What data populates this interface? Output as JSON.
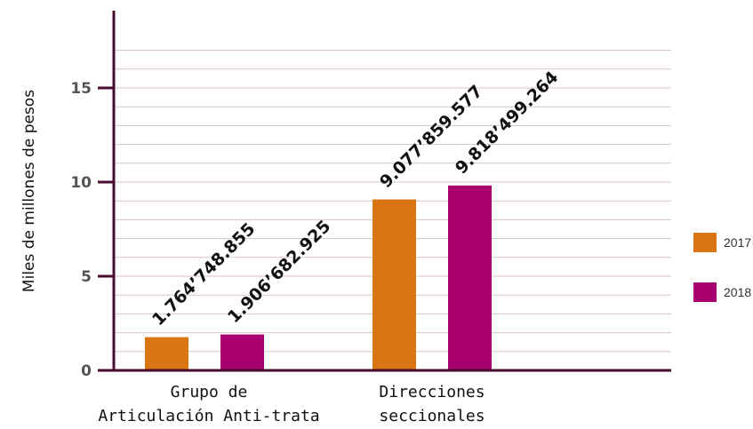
{
  "chart_data": {
    "type": "bar",
    "title": "",
    "xlabel": "",
    "ylabel": "Miles de millones de pesos",
    "ylim": [
      0,
      18.5
    ],
    "major_ticks": [
      0,
      5,
      10,
      15
    ],
    "minor_step": 1,
    "grid": true,
    "legend_position": "right",
    "categories": [
      [
        "Grupo de",
        "Articulación Anti-trata"
      ],
      [
        "Direcciones",
        "seccionales"
      ]
    ],
    "series": [
      {
        "name": "2017",
        "color": "#D97512",
        "values": [
          1.764748855,
          9.077859577
        ],
        "labels": [
          "1.764’748.855",
          "9.077’859.577"
        ]
      },
      {
        "name": "2018",
        "color": "#A8006E",
        "values": [
          1.906682925,
          9.818499264
        ],
        "labels": [
          "1.906’682.925",
          "9.818’499.264"
        ]
      }
    ],
    "axis_color": "#4A0B32",
    "grid_color": "#D9C2CD"
  }
}
